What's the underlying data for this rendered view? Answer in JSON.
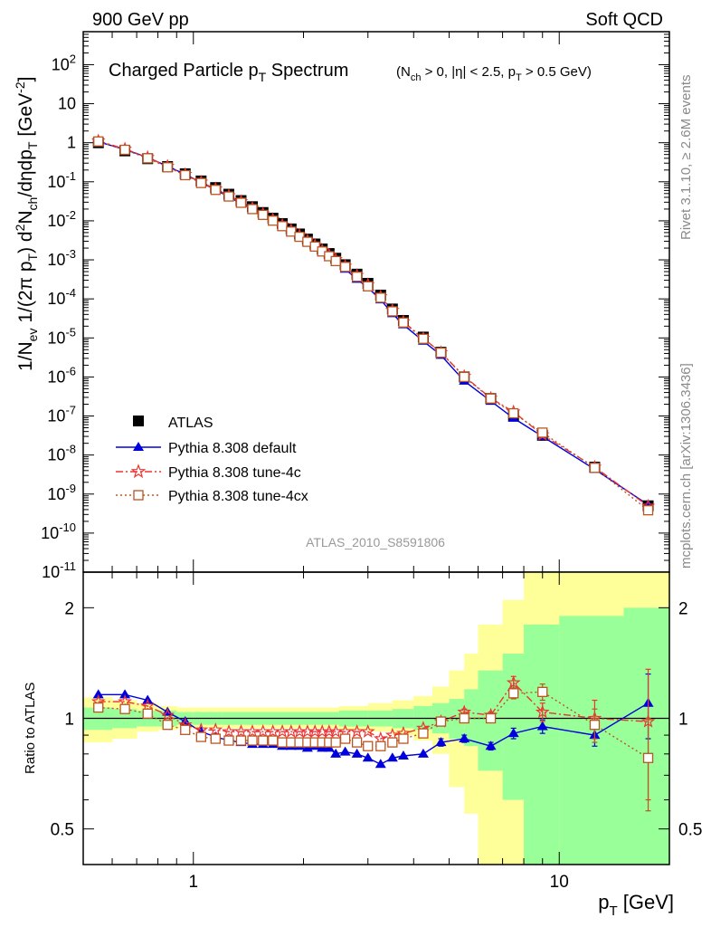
{
  "header": {
    "left": "900 GeV pp",
    "right": "Soft QCD",
    "rivet_label": "Rivet 3.1.10, ≥ 2.6M events",
    "mcplots_label": "mcplots.cern.ch [arXiv:1306.3436]",
    "analysis_tag": "ATLAS_2010_S8591806"
  },
  "colors": {
    "atlas": "#000000",
    "default": "#0000dd",
    "tune4c": "#ee3333",
    "tune4cx": "#bb5522",
    "band_inner": "#99ff99",
    "band_outer": "#ffff99"
  },
  "chart_data": [
    {
      "type": "line",
      "title": "Charged Particle p_T Spectrum",
      "title_qualifier": "(N_ch > 0, |η| < 2.5, p_T > 0.5 GeV)",
      "xlabel": "p_T [GeV]",
      "ylabel": "1/N_ev 1/(2π p_T) d²N_ch/dηdp_T [GeV^-2]",
      "x_scale": "log",
      "y_scale": "log",
      "xlim": [
        0.5,
        20
      ],
      "ylim": [
        1e-11,
        700
      ],
      "x_ticks": [
        1,
        10
      ],
      "y_ticks": [
        "10^-11",
        "10^-10",
        "10^-9",
        "10^-8",
        "10^-7",
        "10^-6",
        "10^-5",
        "10^-4",
        "10^-3",
        "10^-2",
        "10^-1",
        "1",
        "10",
        "10^2"
      ],
      "legend_position": "bottom-left",
      "x": [
        0.55,
        0.65,
        0.75,
        0.85,
        0.95,
        1.05,
        1.15,
        1.25,
        1.35,
        1.45,
        1.55,
        1.65,
        1.75,
        1.85,
        1.95,
        2.05,
        2.15,
        2.25,
        2.35,
        2.45,
        2.6,
        2.8,
        3.0,
        3.25,
        3.5,
        3.75,
        4.25,
        4.75,
        5.5,
        6.5,
        7.5,
        9.0,
        12.5,
        17.5
      ],
      "series": [
        {
          "name": "ATLAS",
          "marker": "square-filled",
          "values": [
            1.0,
            0.62,
            0.39,
            0.245,
            0.16,
            0.105,
            0.071,
            0.048,
            0.033,
            0.023,
            0.0163,
            0.0117,
            0.0085,
            0.0062,
            0.0046,
            0.0034,
            0.00255,
            0.0019,
            0.00145,
            0.0011,
            0.00075,
            0.00043,
            0.00025,
            0.000125,
            5.5e-05,
            2.8e-05,
            1.05e-05,
            4.3e-06,
            1e-06,
            2.8e-07,
            1e-07,
            3.2e-08,
            4.9e-09,
            5e-10
          ],
          "errors": []
        },
        {
          "name": "Pythia 8.308 default",
          "marker": "triangle-filled",
          "values": [
            1.06,
            0.67,
            0.42,
            0.25,
            0.155,
            0.096,
            0.062,
            0.041,
            0.028,
            0.0192,
            0.0136,
            0.0098,
            0.0071,
            0.0052,
            0.0038,
            0.0028,
            0.00212,
            0.00155,
            0.00115,
            0.00087,
            0.00058,
            0.00032,
            0.000195,
            9.5e-05,
            4.2e-05,
            2.18e-05,
            8.3e-06,
            3.6e-06,
            7.9e-07,
            2.4e-07,
            8.8e-08,
            3e-08,
            4.3e-09,
            5.3e-10
          ],
          "ratio": [
            1.16,
            1.16,
            1.12,
            1.04,
            0.98,
            0.92,
            0.89,
            0.87,
            0.86,
            0.85,
            0.85,
            0.85,
            0.84,
            0.84,
            0.84,
            0.83,
            0.84,
            0.83,
            0.83,
            0.8,
            0.81,
            0.8,
            0.78,
            0.75,
            0.78,
            0.79,
            0.8,
            0.86,
            0.88,
            0.84,
            0.91,
            0.95,
            0.9,
            1.1
          ],
          "ratio_errors": [
            0,
            0,
            0,
            0,
            0,
            0,
            0,
            0,
            0,
            0,
            0,
            0,
            0,
            0,
            0,
            0,
            0,
            0,
            0,
            0,
            0,
            0,
            0,
            0,
            0,
            0,
            0,
            0.02,
            0.02,
            0.02,
            0.03,
            0.04,
            0.06,
            0.22
          ]
        },
        {
          "name": "Pythia 8.308 tune-4c",
          "marker": "star-open",
          "values": [
            1.11,
            0.69,
            0.42,
            0.25,
            0.154,
            0.098,
            0.066,
            0.044,
            0.031,
            0.021,
            0.0151,
            0.0108,
            0.0078,
            0.0057,
            0.0042,
            0.0031,
            0.00234,
            0.00174,
            0.00133,
            0.00101,
            0.00069,
            0.0004,
            0.000232,
            0.000114,
            5.1e-05,
            2.6e-05,
            9.8e-06,
            4.2e-06,
            1.04e-06,
            2.85e-07,
            1.27e-07,
            3.3e-08,
            4.9e-09,
            4.9e-10
          ],
          "ratio": [
            1.11,
            1.11,
            1.08,
            1.02,
            0.96,
            0.93,
            0.93,
            0.92,
            0.92,
            0.92,
            0.92,
            0.92,
            0.92,
            0.92,
            0.92,
            0.92,
            0.92,
            0.92,
            0.92,
            0.92,
            0.92,
            0.92,
            0.92,
            0.88,
            0.9,
            0.91,
            0.94,
            0.98,
            1.04,
            1.02,
            1.25,
            1.04,
            1.0,
            0.98
          ],
          "ratio_errors": [
            0,
            0,
            0,
            0,
            0,
            0,
            0,
            0,
            0,
            0,
            0,
            0,
            0,
            0,
            0,
            0,
            0,
            0,
            0,
            0,
            0,
            0,
            0,
            0,
            0,
            0,
            0,
            0,
            0.02,
            0.02,
            0.05,
            0.06,
            0.12,
            0.38
          ]
        },
        {
          "name": "Pythia 8.308 tune-4cx",
          "marker": "square-open",
          "values": [
            1.08,
            0.66,
            0.4,
            0.235,
            0.148,
            0.093,
            0.062,
            0.042,
            0.029,
            0.02,
            0.0142,
            0.0101,
            0.0073,
            0.0053,
            0.0039,
            0.0029,
            0.00219,
            0.00164,
            0.00124,
            0.00093,
            0.00066,
            0.00037,
            0.00021,
            0.000107,
            4.8e-05,
            2.48e-05,
            9.5e-06,
            4.2e-06,
            1e-06,
            2.8e-07,
            1.17e-07,
            3.75e-08,
            4.7e-09,
            3.85e-10
          ],
          "ratio": [
            1.07,
            1.06,
            1.03,
            0.96,
            0.93,
            0.89,
            0.88,
            0.87,
            0.87,
            0.87,
            0.87,
            0.87,
            0.86,
            0.86,
            0.86,
            0.86,
            0.86,
            0.86,
            0.86,
            0.86,
            0.88,
            0.86,
            0.84,
            0.84,
            0.86,
            0.88,
            0.91,
            0.98,
            1.0,
            1.0,
            1.17,
            1.18,
            0.96,
            0.78
          ],
          "ratio_errors": [
            0,
            0,
            0,
            0,
            0,
            0,
            0,
            0,
            0,
            0,
            0,
            0,
            0,
            0,
            0,
            0,
            0,
            0,
            0,
            0,
            0,
            0,
            0,
            0,
            0,
            0,
            0,
            0,
            0.02,
            0.02,
            0.04,
            0.06,
            0.1,
            0.22
          ]
        }
      ]
    },
    {
      "type": "line",
      "title": "",
      "xlabel": "p_T [GeV]",
      "ylabel": "Ratio to ATLAS",
      "x_scale": "log",
      "y_scale": "log",
      "xlim": [
        0.5,
        20
      ],
      "ylim": [
        0.4,
        2.5
      ],
      "y_tick_labels": [
        "0.5",
        "1",
        "2"
      ],
      "x_ticks": [
        1,
        10
      ],
      "bands": [
        {
          "x": [
            0.5,
            0.6,
            0.7,
            0.8,
            0.9,
            1.0,
            1.2,
            1.5,
            2.0,
            2.5,
            3.0,
            3.5,
            4.0,
            4.5,
            5.0,
            5.5,
            6.0,
            7.0,
            8.0,
            10.0,
            15.0,
            20.0
          ],
          "inner_low": [
            0.93,
            0.94,
            0.95,
            0.95,
            0.96,
            0.96,
            0.96,
            0.96,
            0.96,
            0.95,
            0.95,
            0.94,
            0.93,
            0.91,
            0.88,
            0.84,
            0.72,
            0.6,
            0.4,
            0.4,
            0.4
          ],
          "inner_high": [
            1.07,
            1.06,
            1.05,
            1.05,
            1.04,
            1.04,
            1.04,
            1.04,
            1.04,
            1.05,
            1.05,
            1.06,
            1.08,
            1.1,
            1.13,
            1.2,
            1.35,
            1.5,
            1.8,
            1.9,
            2.0
          ],
          "outer_low": [
            0.86,
            0.88,
            0.92,
            0.93,
            0.94,
            0.94,
            0.94,
            0.94,
            0.94,
            0.93,
            0.92,
            0.9,
            0.87,
            0.8,
            0.65,
            0.55,
            0.4,
            0.4,
            0.4,
            0.4,
            0.4
          ],
          "outer_high": [
            1.14,
            1.12,
            1.1,
            1.08,
            1.07,
            1.07,
            1.07,
            1.07,
            1.07,
            1.08,
            1.1,
            1.12,
            1.15,
            1.22,
            1.35,
            1.5,
            1.8,
            2.1,
            2.5,
            2.5,
            2.5
          ]
        }
      ]
    }
  ]
}
